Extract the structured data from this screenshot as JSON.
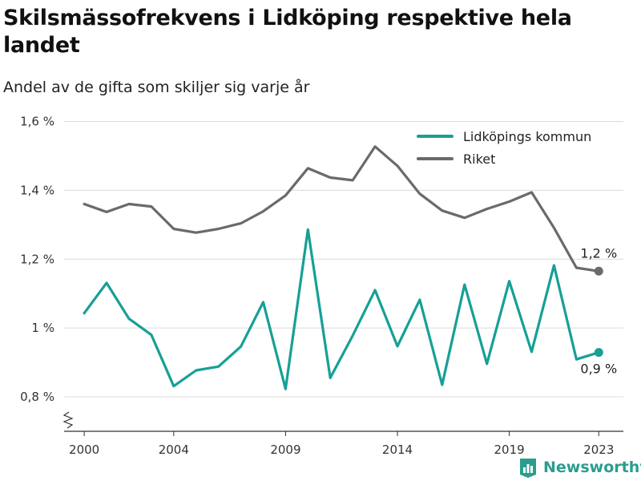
{
  "title": "Skilsmässofrekvens i Lidköping respektive hela landet",
  "subtitle": "Andel av de gifta som skiljer sig varje år",
  "brand": {
    "name": "Newsworthy",
    "color": "#2a9d8f"
  },
  "chart_data": {
    "type": "line",
    "x": [
      2000,
      2001,
      2002,
      2003,
      2004,
      2005,
      2006,
      2007,
      2008,
      2009,
      2010,
      2011,
      2012,
      2013,
      2014,
      2015,
      2016,
      2017,
      2018,
      2019,
      2020,
      2021,
      2022,
      2023
    ],
    "xticks": [
      2000,
      2004,
      2009,
      2014,
      2019,
      2023
    ],
    "xtick_labels": [
      "2000",
      "2004",
      "2009",
      "2014",
      "2019",
      "2023"
    ],
    "xlim": [
      1999.1,
      2024.1
    ],
    "ylim": [
      0.7,
      1.65
    ],
    "yticks": [
      0.8,
      1.0,
      1.2,
      1.4,
      1.6
    ],
    "ytick_labels": [
      "0,8 %",
      "1 %",
      "1,2 %",
      "1,4 %",
      "1,6 %"
    ],
    "axis_break": true,
    "grid": true,
    "legend_position": "top-right",
    "series": [
      {
        "name": "Lidköpings kommun",
        "color": "#16a096",
        "values": [
          1.043,
          1.131,
          1.027,
          0.98,
          0.831,
          0.877,
          0.888,
          0.946,
          1.075,
          0.823,
          1.286,
          0.855,
          0.978,
          1.11,
          0.947,
          1.082,
          0.835,
          1.126,
          0.896,
          1.136,
          0.931,
          1.182,
          0.909,
          0.929
        ],
        "end_label": "0,9 %"
      },
      {
        "name": "Riket",
        "color": "#6a6a6d",
        "values": [
          1.36,
          1.337,
          1.36,
          1.353,
          1.288,
          1.277,
          1.288,
          1.304,
          1.339,
          1.385,
          1.464,
          1.437,
          1.429,
          1.527,
          1.471,
          1.39,
          1.341,
          1.32,
          1.346,
          1.367,
          1.394,
          1.291,
          1.175,
          1.165
        ],
        "end_label": "1,2 %"
      }
    ]
  }
}
